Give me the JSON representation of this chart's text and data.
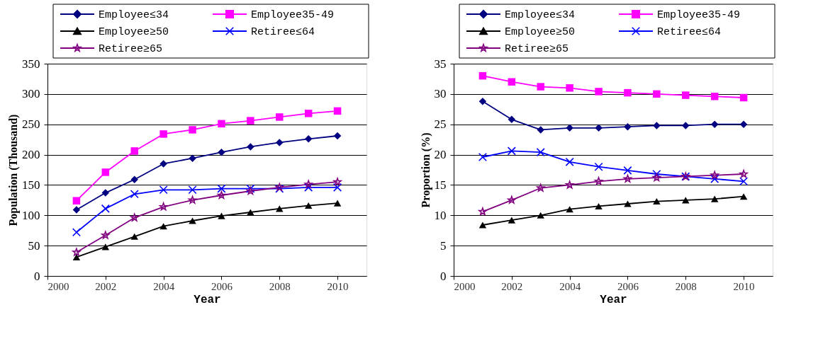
{
  "chart_data": [
    {
      "type": "line",
      "xlabel": "Year",
      "ylabel": "Population (Thousand)",
      "x": [
        2001,
        2002,
        2003,
        2004,
        2005,
        2006,
        2007,
        2008,
        2009,
        2010
      ],
      "xlim": [
        2000,
        2011
      ],
      "xticks": [
        2000,
        2002,
        2004,
        2006,
        2008,
        2010
      ],
      "ylim": [
        0,
        350
      ],
      "yticks": [
        0,
        50,
        100,
        150,
        200,
        250,
        300,
        350
      ],
      "grid": "y",
      "legend": "top",
      "series": [
        {
          "name": "Employee≤34",
          "color": "#000080",
          "marker": "diamond",
          "values": [
            109,
            137,
            159,
            185,
            194,
            204,
            213,
            220,
            226,
            231
          ]
        },
        {
          "name": "Employee35-49",
          "color": "#ff00ff",
          "marker": "square",
          "values": [
            124,
            171,
            206,
            234,
            241,
            251,
            256,
            262,
            268,
            272
          ]
        },
        {
          "name": "Employee≥50",
          "color": "#000000",
          "marker": "triangle",
          "values": [
            31,
            48,
            65,
            82,
            91,
            99,
            105,
            111,
            116,
            120
          ]
        },
        {
          "name": "Retiree≤64",
          "color": "#0000ff",
          "marker": "cross",
          "values": [
            72,
            111,
            135,
            142,
            142,
            144,
            144,
            144,
            146,
            146
          ]
        },
        {
          "name": "Retiree≥65",
          "color": "#800080",
          "marker": "star",
          "values": [
            39,
            67,
            96,
            114,
            125,
            133,
            140,
            146,
            151,
            155
          ]
        }
      ]
    },
    {
      "type": "line",
      "xlabel": "Year",
      "ylabel": "Proportion (%)",
      "x": [
        2001,
        2002,
        2003,
        2004,
        2005,
        2006,
        2007,
        2008,
        2009,
        2010
      ],
      "xlim": [
        2000,
        2011
      ],
      "xticks": [
        2000,
        2002,
        2004,
        2006,
        2008,
        2010
      ],
      "ylim": [
        0,
        35
      ],
      "yticks": [
        0,
        5,
        10,
        15,
        20,
        25,
        30,
        35
      ],
      "grid": "y",
      "legend": "top",
      "series": [
        {
          "name": "Employee≤34",
          "color": "#000080",
          "marker": "diamond",
          "values": [
            28.8,
            25.8,
            24.1,
            24.4,
            24.4,
            24.6,
            24.8,
            24.8,
            25.0,
            25.0
          ]
        },
        {
          "name": "Employee35-49",
          "color": "#ff00ff",
          "marker": "square",
          "values": [
            33.0,
            32.0,
            31.2,
            31.0,
            30.4,
            30.2,
            30.0,
            29.8,
            29.6,
            29.4
          ]
        },
        {
          "name": "Employee≥50",
          "color": "#000000",
          "marker": "triangle",
          "values": [
            8.4,
            9.2,
            10.0,
            11.0,
            11.5,
            11.9,
            12.3,
            12.5,
            12.7,
            13.1
          ]
        },
        {
          "name": "Retiree≤64",
          "color": "#0000ff",
          "marker": "cross",
          "values": [
            19.6,
            20.6,
            20.4,
            18.8,
            18.0,
            17.4,
            16.8,
            16.4,
            16.0,
            15.6
          ]
        },
        {
          "name": "Retiree≥65",
          "color": "#800080",
          "marker": "star",
          "values": [
            10.6,
            12.5,
            14.5,
            15.0,
            15.6,
            16.0,
            16.2,
            16.4,
            16.6,
            16.8
          ]
        }
      ]
    }
  ]
}
